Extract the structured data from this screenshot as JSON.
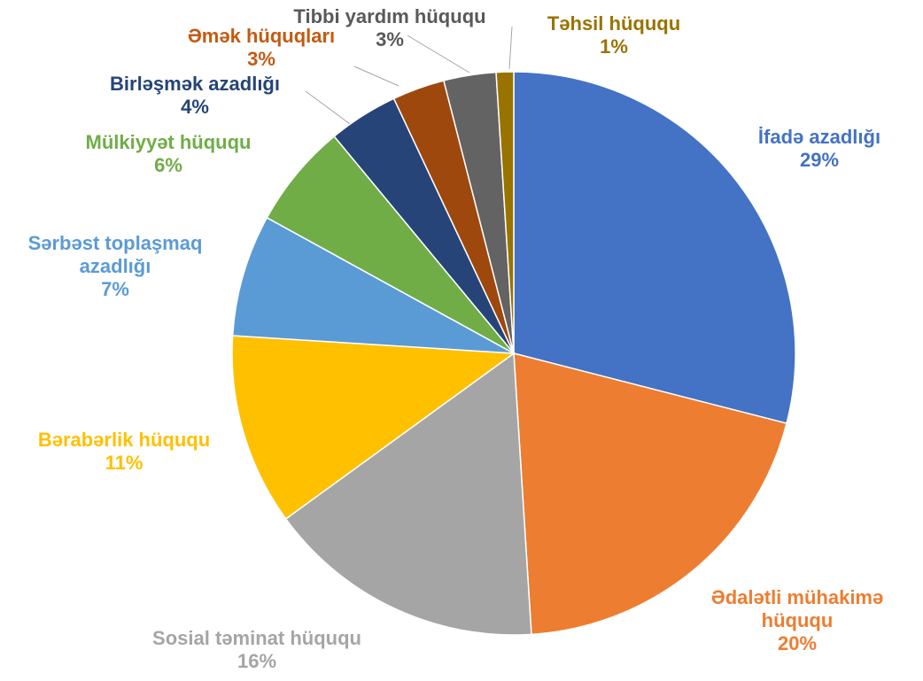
{
  "chart_data": {
    "type": "pie",
    "categories": [
      "İfadə azadlığı",
      "Ədalətli mühakimə hüququ",
      "Sosial təminat hüququ",
      "Bərabərlik hüququ",
      "Sərbəst toplaşmaq azadlığı",
      "Mülkiyyət hüququ",
      "Birləşmək azadlığı",
      "Əmək hüquqları",
      "Tibbi yardım hüququ",
      "Təhsil hüququ"
    ],
    "values": [
      29,
      20,
      16,
      11,
      7,
      6,
      4,
      3,
      3,
      1
    ],
    "value_labels": [
      "29%",
      "20%",
      "16%",
      "11%",
      "7%",
      "6%",
      "4%",
      "3%",
      "3%",
      "1%"
    ],
    "colors": [
      "#4472c4",
      "#ed7d31",
      "#a5a5a5",
      "#ffc000",
      "#5b9bd5",
      "#70ad47",
      "#264478",
      "#9e480e",
      "#636363",
      "#997300"
    ]
  }
}
